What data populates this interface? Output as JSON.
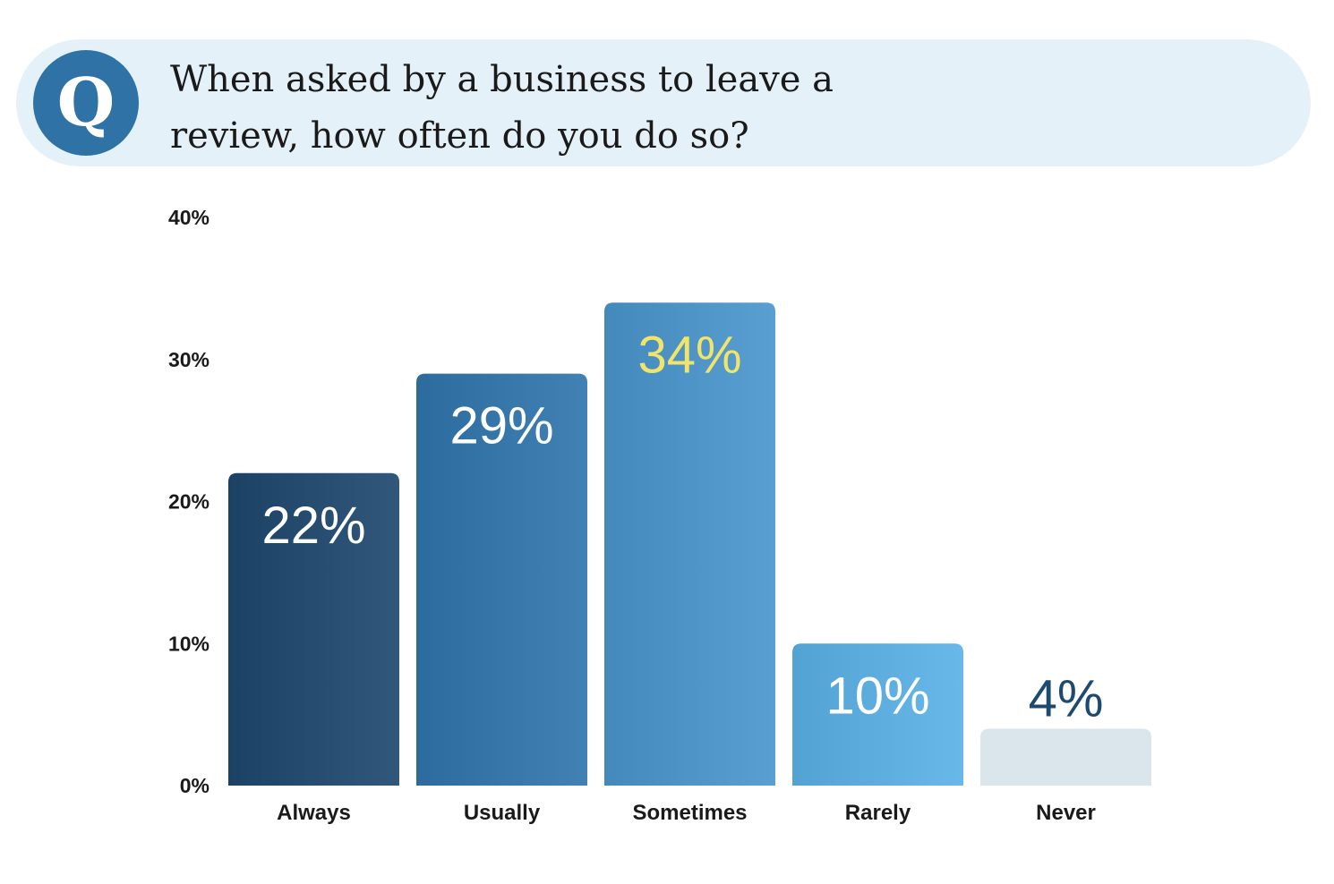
{
  "question": {
    "badge_letter": "Q",
    "line1": "When asked by a business to leave a",
    "line2": "review, how often do you do so?"
  },
  "colors": {
    "banner_background": "#e5f1f8",
    "badge": "#2e72a6",
    "bar_always": "#23496d",
    "bar_usually": "#3373a5",
    "bar_sometimes": "#4b91c3",
    "bar_rarely": "#5aaadb",
    "bar_never": "#dbe5ec",
    "label_highlight": "#f2e46b",
    "label_light": "#ffffff",
    "label_dark": "#1f4a70"
  },
  "chart_data": {
    "type": "bar",
    "title": "When asked by a business to leave a review, how often do you do so?",
    "xlabel": "",
    "ylabel": "",
    "categories": [
      "Always",
      "Usually",
      "Sometimes",
      "Rarely",
      "Never"
    ],
    "values": [
      22,
      29,
      34,
      10,
      4
    ],
    "value_labels": [
      "22%",
      "29%",
      "34%",
      "10%",
      "4%"
    ],
    "unit": "%",
    "ylim": [
      0,
      40
    ],
    "yticks": [
      0,
      10,
      20,
      30,
      40
    ],
    "ytick_labels": [
      "0%",
      "10%",
      "20%",
      "30%",
      "40%"
    ],
    "grid": false,
    "legend": "none"
  }
}
